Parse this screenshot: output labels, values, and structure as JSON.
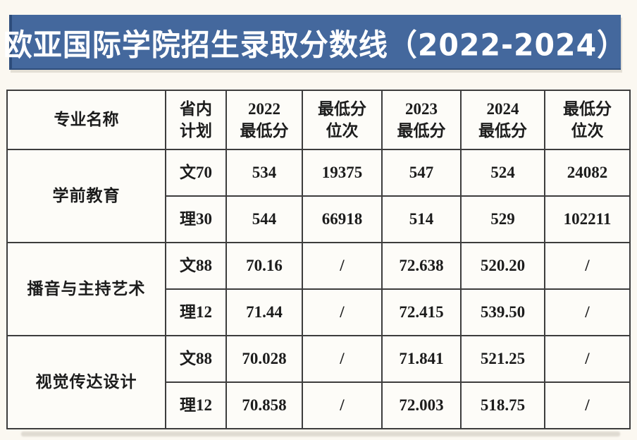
{
  "banner": {
    "title": "欧亚国际学院招生录取分数线（2022-2024）",
    "bg_color": "#44689d",
    "edge_color": "#2e4d7b",
    "text_color": "#ffffff"
  },
  "table": {
    "headers": {
      "major": "专业名称",
      "plan": "省内\n计划",
      "min2022": "2022\n最低分",
      "rank2022": "最低分\n位次",
      "min2023": "2023\n最低分",
      "min2024": "2024\n最低分",
      "rank2024": "最低分\n位次"
    },
    "groups": [
      {
        "major": "学前教育",
        "rows": [
          {
            "plan": "文70",
            "min2022": "534",
            "rank2022": "19375",
            "min2023": "547",
            "min2024": "524",
            "rank2024": "24082"
          },
          {
            "plan": "理30",
            "min2022": "544",
            "rank2022": "66918",
            "min2023": "514",
            "min2024": "529",
            "rank2024": "102211"
          }
        ]
      },
      {
        "major": "播音与主持艺术",
        "rows": [
          {
            "plan": "文88",
            "min2022": "70.16",
            "rank2022": "/",
            "min2023": "72.638",
            "min2024": "520.20",
            "rank2024": "/"
          },
          {
            "plan": "理12",
            "min2022": "71.44",
            "rank2022": "/",
            "min2023": "72.415",
            "min2024": "539.50",
            "rank2024": "/"
          }
        ]
      },
      {
        "major": "视觉传达设计",
        "rows": [
          {
            "plan": "文88",
            "min2022": "70.028",
            "rank2022": "/",
            "min2023": "71.841",
            "min2024": "521.25",
            "rank2024": "/"
          },
          {
            "plan": "理12",
            "min2022": "70.858",
            "rank2022": "/",
            "min2023": "72.003",
            "min2024": "518.75",
            "rank2024": "/"
          }
        ]
      }
    ]
  }
}
